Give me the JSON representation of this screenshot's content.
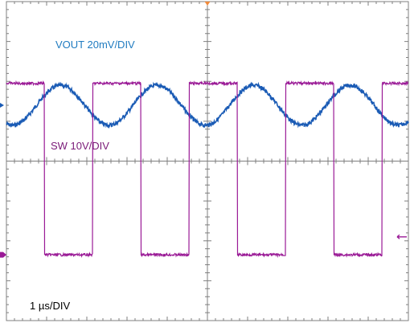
{
  "labels": {
    "vout": "VOUT 20mV/DIV",
    "sw": "SW 10V/DIV",
    "time_prefix": "1 ",
    "time_mu": "µ",
    "time_suffix": "s/DIV"
  },
  "colors": {
    "vout": "#1a5bb5",
    "vout_label": "#1f7bc0",
    "sw": "#9a1a96",
    "sw_label": "#7a1a78",
    "grid": "#7f7f7f",
    "trigger": "#f08a3c"
  },
  "chart_data": {
    "type": "line",
    "x_divisions": 10,
    "y_divisions": 8,
    "time_per_div": "1 µs/DIV",
    "grid": true,
    "series": [
      {
        "name": "VOUT",
        "scale": "20mV/DIV",
        "shape": "sine",
        "period_div": 2.4,
        "amplitude_div": 0.5,
        "center_div": 2.6,
        "first_peak_div": 1.35
      },
      {
        "name": "SW",
        "scale": "10V/DIV",
        "shape": "square",
        "high_div": 2.05,
        "low_div": 6.35,
        "falling_edges_div": [
          0.95,
          3.35,
          5.75,
          8.15
        ],
        "rising_edges_div": [
          2.15,
          4.55,
          6.95,
          9.35
        ]
      }
    ]
  }
}
